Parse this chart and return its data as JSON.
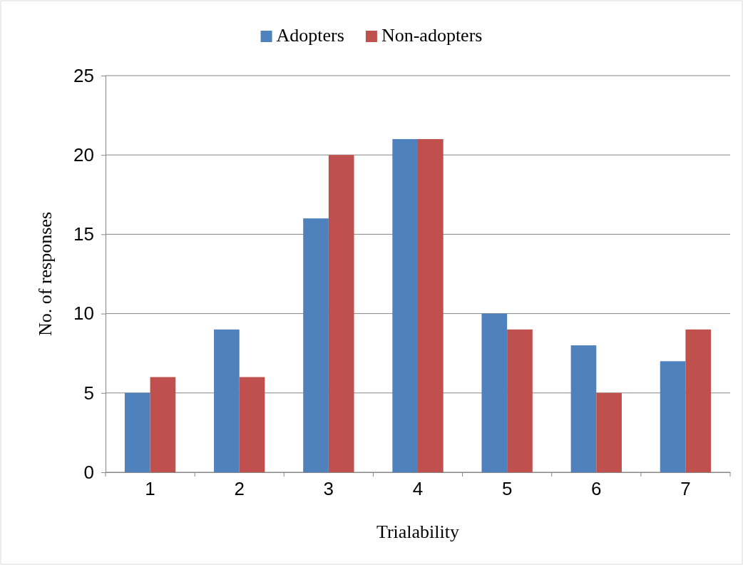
{
  "chart_data": {
    "type": "bar",
    "xlabel": "Trialability",
    "ylabel": "No. of responses",
    "categories": [
      "1",
      "2",
      "3",
      "4",
      "5",
      "6",
      "7"
    ],
    "series": [
      {
        "name": "Adopters",
        "color": "#4f81bd",
        "values": [
          5,
          9,
          16,
          21,
          10,
          8,
          7
        ]
      },
      {
        "name": "Non-adopters",
        "color": "#c0504d",
        "values": [
          6,
          6,
          20,
          21,
          9,
          5,
          9
        ]
      }
    ],
    "ylim": [
      0,
      25
    ],
    "yticks": [
      0,
      5,
      10,
      15,
      20,
      25
    ],
    "grid": "y",
    "legend": "top"
  }
}
